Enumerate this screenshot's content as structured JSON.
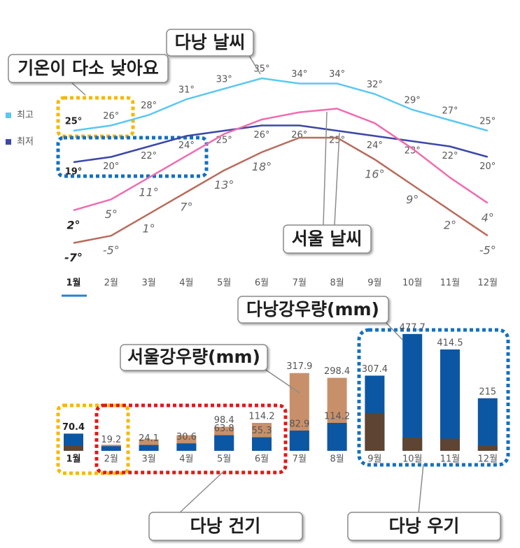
{
  "chart_data": [
    {
      "type": "line",
      "categories": [
        "1월",
        "2월",
        "3월",
        "4월",
        "5월",
        "6월",
        "7월",
        "8월",
        "9월",
        "10월",
        "11월",
        "12월"
      ],
      "ylim": [
        15,
        37
      ],
      "y2lim": [
        -9,
        32
      ],
      "series": [
        {
          "name": "최고",
          "color": "#5bc8f0",
          "values": [
            25,
            26,
            28,
            31,
            33,
            35,
            34,
            34,
            32,
            29,
            27,
            25
          ],
          "value_labels": [
            "25°",
            "26°",
            "28°",
            "31°",
            "33°",
            "35°",
            "34°",
            "34°",
            "32°",
            "29°",
            "27°",
            "25°"
          ]
        },
        {
          "name": "최저",
          "color": "#3b48a8",
          "values": [
            19,
            20,
            22,
            24,
            25,
            26,
            26,
            25,
            24,
            23,
            22,
            20
          ],
          "value_labels": [
            "19°",
            "20°",
            "22°",
            "24°",
            "25°",
            "26°",
            "26°",
            "25°",
            "24°",
            "23°",
            "22°",
            "20°"
          ]
        },
        {
          "color": "#f06cb0",
          "axis": "y2",
          "values": [
            2,
            5,
            11,
            17,
            23,
            27,
            29,
            30,
            26,
            19,
            11,
            4
          ],
          "value_labels": [
            "2°",
            "5°",
            "11°",
            null,
            null,
            null,
            null,
            null,
            null,
            null,
            null,
            "4°"
          ]
        },
        {
          "color": "#b86c5c",
          "axis": "y2",
          "values": [
            -7,
            -5,
            1,
            7,
            13,
            18,
            22,
            22,
            16,
            9,
            2,
            -5
          ],
          "value_labels": [
            "-7°",
            "-5°",
            "1°",
            "7°",
            "13°",
            "18°",
            null,
            null,
            "16°",
            "9°",
            "2°",
            "-5°"
          ]
        }
      ],
      "annotations": [
        "다낭 날씨",
        "기온이 다소 낮아요",
        "서울 날씨"
      ]
    },
    {
      "type": "bar",
      "categories": [
        "1월",
        "2월",
        "3월",
        "4월",
        "5월",
        "6월",
        "7월",
        "8월",
        "9월",
        "10월",
        "11월",
        "12월"
      ],
      "ylim": [
        0,
        480
      ],
      "series": [
        {
          "name": "서울강우량(mm)",
          "color": "#c8906a",
          "values": [
            21,
            25,
            47,
            64,
            98.4,
            114.2,
            317.9,
            298.4,
            155,
            54,
            50,
            22
          ],
          "value_labels": [
            null,
            null,
            null,
            null,
            "98.4",
            "114.2",
            "317.9",
            "298.4",
            null,
            null,
            null,
            null
          ]
        },
        {
          "name": "다낭강우량(mm)",
          "color": "#0b57a3",
          "values": [
            70.4,
            19.2,
            24.1,
            30.6,
            63.8,
            55.3,
            82.9,
            114.2,
            307.4,
            477.7,
            414.5,
            215
          ]
        }
      ],
      "annotations": [
        "다낭 건기",
        "다낭 우기"
      ]
    }
  ]
}
